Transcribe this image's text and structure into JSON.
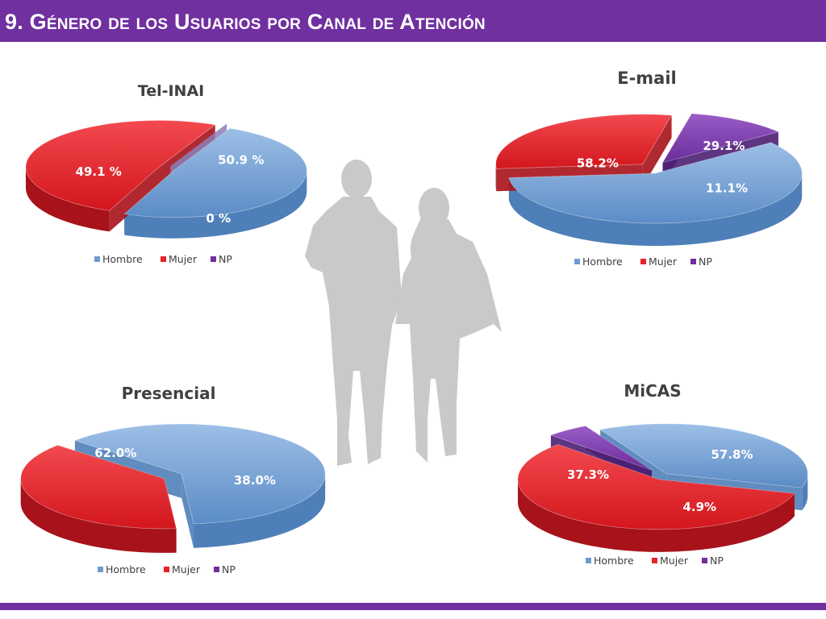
{
  "header": {
    "title": "9. Género de los Usuarios por Canal de Atención"
  },
  "colors": {
    "brand": "#7030a0",
    "Hombre": "#6d9bd0",
    "Mujer": "#e8222a",
    "NP": "#7030a0"
  },
  "decoration": {
    "silhouette": "couple-walking-silhouette"
  },
  "chart_data": [
    {
      "type": "pie",
      "title": "Tel-INAI",
      "categories": [
        "Hombre",
        "Mujer",
        "NP"
      ],
      "values": [
        49.1,
        50.9,
        0
      ],
      "labels": [
        "49.1 %",
        "50.9 %",
        "0 %"
      ],
      "legend": [
        "Hombre",
        "Mujer",
        "NP"
      ],
      "legend_position": "bottom"
    },
    {
      "type": "pie",
      "title": "E-mail",
      "categories": [
        "Hombre",
        "Mujer",
        "NP"
      ],
      "values": [
        58.2,
        29.1,
        11.1
      ],
      "labels": [
        "58.2%",
        "29.1%",
        "11.1%"
      ],
      "legend": [
        "Hombre",
        "Mujer",
        "NP"
      ],
      "legend_position": "bottom"
    },
    {
      "type": "pie",
      "title": "Presencial",
      "categories": [
        "Hombre",
        "Mujer",
        "NP"
      ],
      "values": [
        62.0,
        38.0,
        0
      ],
      "labels": [
        "62.0%",
        "38.0%",
        ""
      ],
      "legend": [
        "Hombre",
        "Mujer",
        "NP"
      ],
      "legend_position": "bottom"
    },
    {
      "type": "pie",
      "title": "MiCAS",
      "categories": [
        "Hombre",
        "Mujer",
        "NP"
      ],
      "values": [
        37.3,
        57.8,
        4.9
      ],
      "labels": [
        "37.3%",
        "57.8%",
        "4.9%"
      ],
      "legend": [
        "Hombre",
        "Mujer",
        "NP"
      ],
      "legend_position": "bottom"
    }
  ]
}
